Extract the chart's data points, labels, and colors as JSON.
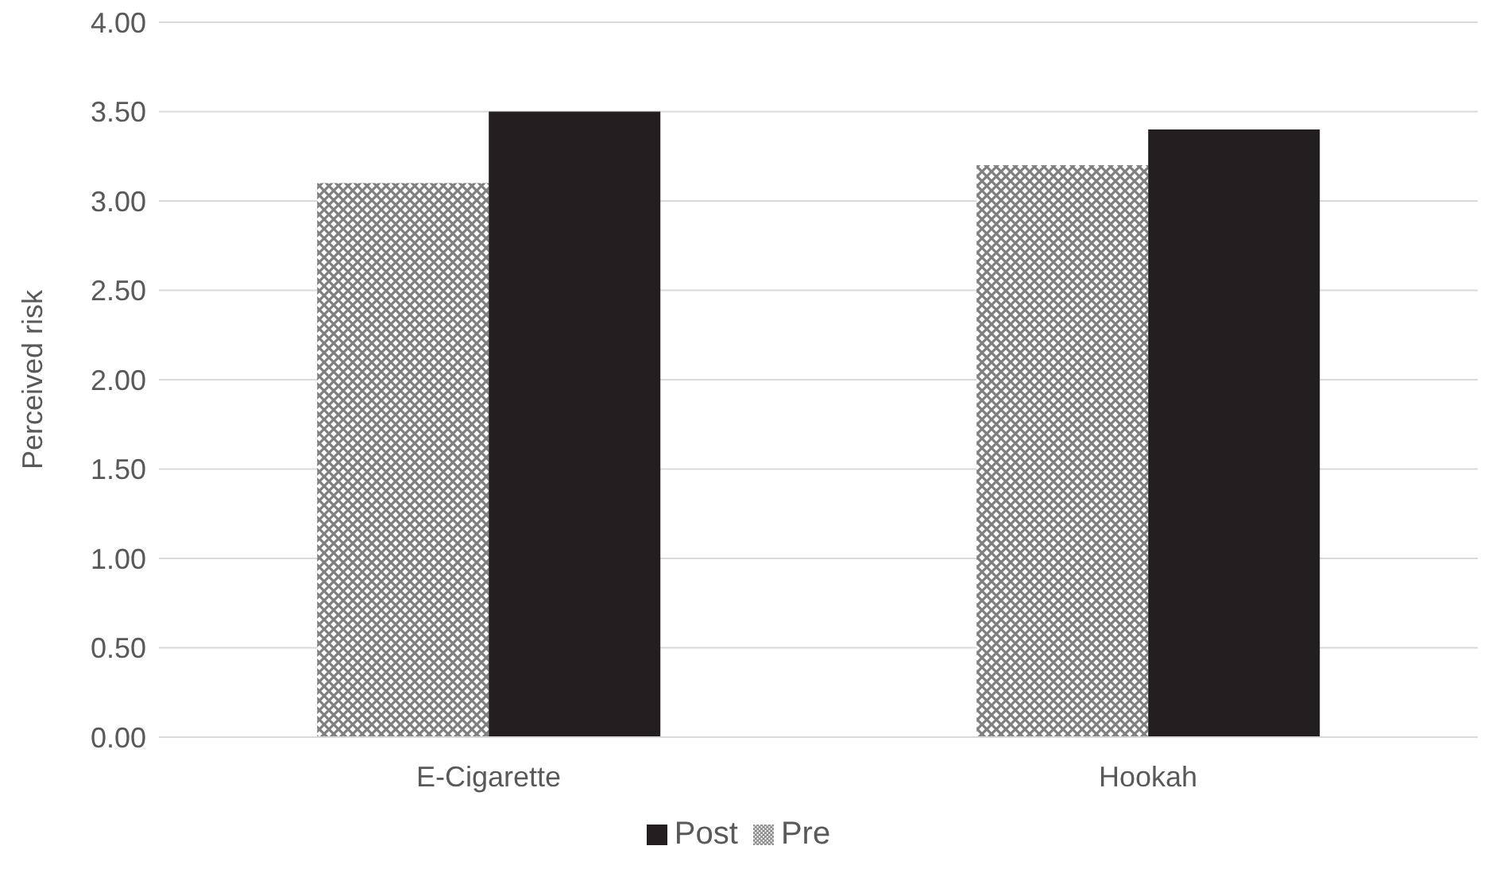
{
  "chart_data": {
    "type": "bar",
    "ylabel": "Perceived risk",
    "categories": [
      "E-Cigarette",
      "Hookah"
    ],
    "series": [
      {
        "name": "Pre",
        "color": "#7f7f7f",
        "values": [
          3.1,
          3.2
        ]
      },
      {
        "name": "Post",
        "color": "#231f20",
        "values": [
          3.5,
          3.4
        ]
      }
    ],
    "ylim": [
      0,
      4
    ],
    "yticks": [
      {
        "value": 0,
        "label": "0.00"
      },
      {
        "value": 0.5,
        "label": "0.50"
      },
      {
        "value": 1,
        "label": "1.00"
      },
      {
        "value": 1.5,
        "label": "1.50"
      },
      {
        "value": 2,
        "label": "2.00"
      },
      {
        "value": 2.5,
        "label": "2.50"
      },
      {
        "value": 3,
        "label": "3.00"
      },
      {
        "value": 3.5,
        "label": "3.50"
      },
      {
        "value": 4,
        "label": "4.00"
      }
    ],
    "grid": "y",
    "legend": "bottom"
  }
}
